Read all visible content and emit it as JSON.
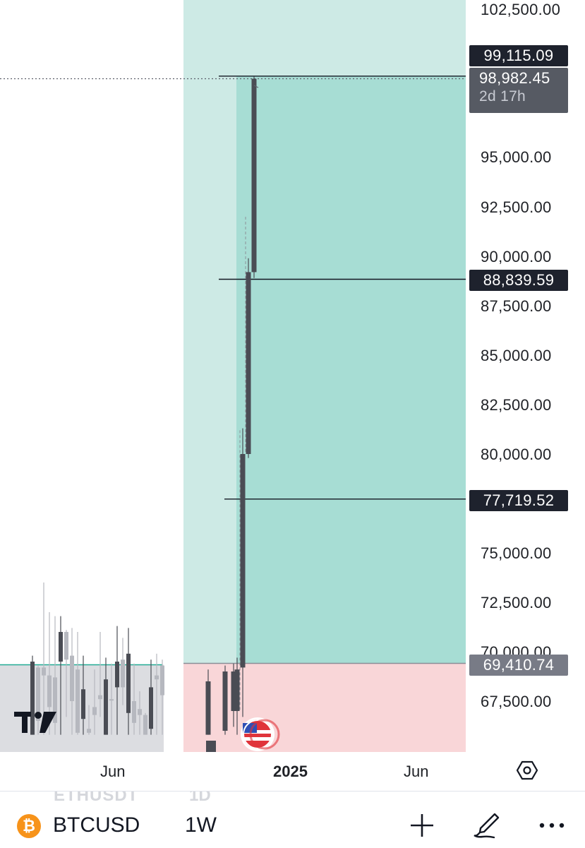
{
  "chart_data": {
    "type": "candlestick",
    "title": "",
    "symbol": "BTCUSD",
    "interval": "1W",
    "x_tick_labels": [
      "Jun",
      "2025",
      "Jun"
    ],
    "y_tick_labels": [
      "102,500.00",
      "95,000.00",
      "92,500.00",
      "90,000.00",
      "87,500.00",
      "85,000.00",
      "82,500.00",
      "80,000.00",
      "75,000.00",
      "72,500.00",
      "70,000.00",
      "67,500.00"
    ],
    "y_ticks": [
      102500,
      95000,
      92500,
      90000,
      87500,
      85000,
      82500,
      80000,
      75000,
      72500,
      70000,
      67500
    ],
    "ylim": [
      65700,
      103000
    ],
    "grid": false,
    "legend": "none",
    "price_lines": [
      {
        "label": "99,115.09",
        "value": 99115.09
      },
      {
        "label": "88,839.59",
        "value": 88839.59
      },
      {
        "label": "77,719.52",
        "value": 77719.52
      },
      {
        "label": "69,410.74",
        "value": 69410.74
      }
    ],
    "current_price": {
      "label": "98,982.45",
      "value": 98982.45,
      "countdown": "2d 17h"
    },
    "long_position": {
      "entry": 69410.74,
      "target": 99115.09
    },
    "candles": [
      {
        "o": 68500,
        "h": 69100,
        "l": 65800,
        "c": 65800
      },
      {
        "o": 66000,
        "h": 69300,
        "l": 65800,
        "c": 69000
      },
      {
        "o": 69000,
        "h": 69400,
        "l": 66200,
        "c": 67000
      },
      {
        "o": 67000,
        "h": 69700,
        "l": 65800,
        "c": 69100
      },
      {
        "o": 69200,
        "h": 81300,
        "l": 66700,
        "c": 80000
      },
      {
        "o": 80000,
        "h": 89900,
        "l": 79800,
        "c": 89200
      },
      {
        "o": 89200,
        "h": 99100,
        "l": 88900,
        "c": 98982
      }
    ],
    "history_candles": [
      {
        "o": 69500,
        "h": 69800,
        "l": 65800,
        "c": 65800,
        "dir": "down"
      },
      {
        "o": 66500,
        "h": 69300,
        "l": 65800,
        "c": 69200,
        "dir": "up"
      },
      {
        "o": 69200,
        "h": 73500,
        "l": 65800,
        "c": 68800,
        "dir": "up"
      },
      {
        "o": 68800,
        "h": 72000,
        "l": 65800,
        "c": 67200,
        "dir": "up"
      },
      {
        "o": 68700,
        "h": 71800,
        "l": 65800,
        "c": 66400,
        "dir": "up"
      },
      {
        "o": 69500,
        "h": 71800,
        "l": 65800,
        "c": 71000,
        "dir": "down"
      },
      {
        "o": 71000,
        "h": 71100,
        "l": 66700,
        "c": 69600,
        "dir": "up"
      },
      {
        "o": 69800,
        "h": 71200,
        "l": 65800,
        "c": 67500,
        "dir": "up"
      },
      {
        "o": 69100,
        "h": 71000,
        "l": 65800,
        "c": 65900,
        "dir": "up"
      },
      {
        "o": 66600,
        "h": 69800,
        "l": 65800,
        "c": 68100,
        "dir": "down"
      },
      {
        "o": 65900,
        "h": 67300,
        "l": 65800,
        "c": 66100,
        "dir": "up"
      },
      {
        "o": 66800,
        "h": 69100,
        "l": 65800,
        "c": 67200,
        "dir": "up"
      },
      {
        "o": 67600,
        "h": 71000,
        "l": 66700,
        "c": 67800,
        "dir": "up"
      },
      {
        "o": 65800,
        "h": 69700,
        "l": 65800,
        "c": 68600,
        "dir": "down"
      },
      {
        "o": 67600,
        "h": 69400,
        "l": 65800,
        "c": 67600,
        "dir": "up"
      },
      {
        "o": 69500,
        "h": 71300,
        "l": 65800,
        "c": 68200,
        "dir": "down"
      },
      {
        "o": 69600,
        "h": 70700,
        "l": 67300,
        "c": 68200,
        "dir": "up"
      },
      {
        "o": 69900,
        "h": 71200,
        "l": 65800,
        "c": 66900,
        "dir": "down"
      },
      {
        "o": 67500,
        "h": 69400,
        "l": 65800,
        "c": 66400,
        "dir": "up"
      },
      {
        "o": 67100,
        "h": 68000,
        "l": 65800,
        "c": 66800,
        "dir": "up"
      },
      {
        "o": 65800,
        "h": 66900,
        "l": 65800,
        "c": 66800,
        "dir": "up"
      },
      {
        "o": 68200,
        "h": 69600,
        "l": 65800,
        "c": 66100,
        "dir": "down"
      },
      {
        "o": 68600,
        "h": 69900,
        "l": 65800,
        "c": 68800,
        "dir": "up"
      },
      {
        "o": 69300,
        "h": 69600,
        "l": 65800,
        "c": 67800,
        "dir": "up"
      }
    ],
    "colors": {
      "candle": "#4a4c54",
      "candle_light": "#b6b8bf",
      "profit_zone": "#a7ddd4",
      "profit_zone_light": "#cdeae5",
      "stop_zone": "#f9d6d8",
      "history_zone": "#dcdde1",
      "history_line": "#22ab94"
    }
  },
  "time_axis": {
    "labels": [
      "Jun",
      "2025",
      "Jun"
    ]
  },
  "bottom_bar": {
    "ghost_symbol": "ETHUSDT",
    "ghost_interval": "1D",
    "symbol": "BTCUSD",
    "interval": "1W",
    "coin_glyph": "₿",
    "icons": [
      "bitcoin-icon",
      "plus-icon",
      "brush-icon",
      "more-icon",
      "settings-icon",
      "us-flag-icon"
    ]
  }
}
